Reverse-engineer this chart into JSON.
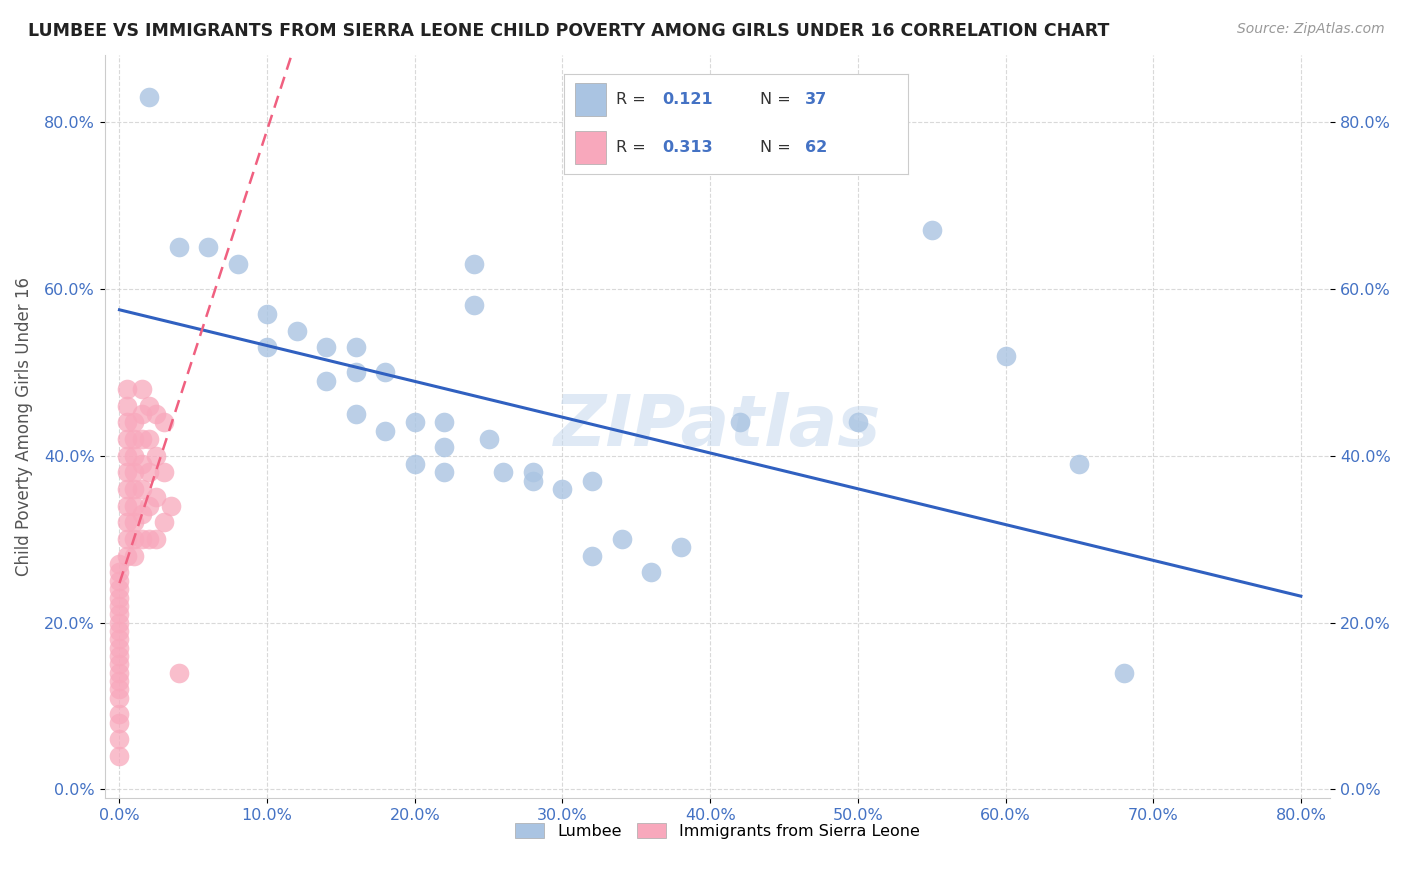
{
  "title": "LUMBEE VS IMMIGRANTS FROM SIERRA LEONE CHILD POVERTY AMONG GIRLS UNDER 16 CORRELATION CHART",
  "source": "Source: ZipAtlas.com",
  "ylabel": "Child Poverty Among Girls Under 16",
  "watermark": "ZIPatlas",
  "lumbee_R": 0.121,
  "lumbee_N": 37,
  "sierra_leone_R": 0.313,
  "sierra_leone_N": 62,
  "lumbee_color": "#aac4e2",
  "sierra_leone_color": "#f8a8bc",
  "lumbee_line_color": "#3060c0",
  "sierra_leone_line_color": "#f06080",
  "lumbee_scatter": [
    [
      0.02,
      0.83
    ],
    [
      0.04,
      0.65
    ],
    [
      0.06,
      0.65
    ],
    [
      0.08,
      0.63
    ],
    [
      0.1,
      0.57
    ],
    [
      0.1,
      0.53
    ],
    [
      0.12,
      0.55
    ],
    [
      0.14,
      0.53
    ],
    [
      0.14,
      0.49
    ],
    [
      0.16,
      0.53
    ],
    [
      0.16,
      0.5
    ],
    [
      0.16,
      0.45
    ],
    [
      0.18,
      0.5
    ],
    [
      0.18,
      0.43
    ],
    [
      0.2,
      0.44
    ],
    [
      0.2,
      0.39
    ],
    [
      0.22,
      0.44
    ],
    [
      0.22,
      0.41
    ],
    [
      0.22,
      0.38
    ],
    [
      0.24,
      0.63
    ],
    [
      0.24,
      0.58
    ],
    [
      0.25,
      0.42
    ],
    [
      0.26,
      0.38
    ],
    [
      0.28,
      0.37
    ],
    [
      0.28,
      0.38
    ],
    [
      0.3,
      0.36
    ],
    [
      0.32,
      0.37
    ],
    [
      0.32,
      0.28
    ],
    [
      0.34,
      0.3
    ],
    [
      0.36,
      0.26
    ],
    [
      0.38,
      0.29
    ],
    [
      0.42,
      0.44
    ],
    [
      0.5,
      0.44
    ],
    [
      0.55,
      0.67
    ],
    [
      0.6,
      0.52
    ],
    [
      0.65,
      0.39
    ],
    [
      0.68,
      0.14
    ]
  ],
  "sierra_leone_scatter": [
    [
      0.0,
      0.04
    ],
    [
      0.0,
      0.06
    ],
    [
      0.0,
      0.08
    ],
    [
      0.0,
      0.09
    ],
    [
      0.0,
      0.11
    ],
    [
      0.0,
      0.12
    ],
    [
      0.0,
      0.13
    ],
    [
      0.0,
      0.14
    ],
    [
      0.0,
      0.15
    ],
    [
      0.0,
      0.16
    ],
    [
      0.0,
      0.17
    ],
    [
      0.0,
      0.18
    ],
    [
      0.0,
      0.19
    ],
    [
      0.0,
      0.2
    ],
    [
      0.0,
      0.21
    ],
    [
      0.0,
      0.22
    ],
    [
      0.0,
      0.23
    ],
    [
      0.0,
      0.24
    ],
    [
      0.0,
      0.25
    ],
    [
      0.0,
      0.26
    ],
    [
      0.0,
      0.27
    ],
    [
      0.005,
      0.28
    ],
    [
      0.005,
      0.3
    ],
    [
      0.005,
      0.32
    ],
    [
      0.005,
      0.34
    ],
    [
      0.005,
      0.36
    ],
    [
      0.005,
      0.38
    ],
    [
      0.005,
      0.4
    ],
    [
      0.005,
      0.42
    ],
    [
      0.005,
      0.44
    ],
    [
      0.005,
      0.46
    ],
    [
      0.005,
      0.48
    ],
    [
      0.01,
      0.28
    ],
    [
      0.01,
      0.3
    ],
    [
      0.01,
      0.32
    ],
    [
      0.01,
      0.34
    ],
    [
      0.01,
      0.36
    ],
    [
      0.01,
      0.38
    ],
    [
      0.01,
      0.4
    ],
    [
      0.01,
      0.42
    ],
    [
      0.01,
      0.44
    ],
    [
      0.015,
      0.3
    ],
    [
      0.015,
      0.33
    ],
    [
      0.015,
      0.36
    ],
    [
      0.015,
      0.39
    ],
    [
      0.015,
      0.42
    ],
    [
      0.015,
      0.45
    ],
    [
      0.015,
      0.48
    ],
    [
      0.02,
      0.3
    ],
    [
      0.02,
      0.34
    ],
    [
      0.02,
      0.38
    ],
    [
      0.02,
      0.42
    ],
    [
      0.02,
      0.46
    ],
    [
      0.025,
      0.3
    ],
    [
      0.025,
      0.35
    ],
    [
      0.025,
      0.4
    ],
    [
      0.025,
      0.45
    ],
    [
      0.03,
      0.32
    ],
    [
      0.03,
      0.38
    ],
    [
      0.03,
      0.44
    ],
    [
      0.035,
      0.34
    ],
    [
      0.04,
      0.14
    ]
  ],
  "xlim": [
    -0.01,
    0.82
  ],
  "ylim": [
    -0.01,
    0.88
  ],
  "xticks": [
    0.0,
    0.1,
    0.2,
    0.3,
    0.4,
    0.5,
    0.6,
    0.7,
    0.8
  ],
  "yticks": [
    0.0,
    0.2,
    0.4,
    0.6,
    0.8
  ],
  "xticklabels": [
    "0.0%",
    "10.0%",
    "20.0%",
    "30.0%",
    "40.0%",
    "50.0%",
    "60.0%",
    "70.0%",
    "80.0%"
  ],
  "yticklabels": [
    "0.0%",
    "20.0%",
    "40.0%",
    "60.0%",
    "80.0%"
  ],
  "background_color": "#ffffff",
  "grid_color": "#d0d0d0",
  "title_color": "#222222",
  "axis_label_color": "#555555",
  "tick_label_color": "#4472c4",
  "legend_R_color": "#4472c4",
  "legend_N_color": "#4472c4"
}
